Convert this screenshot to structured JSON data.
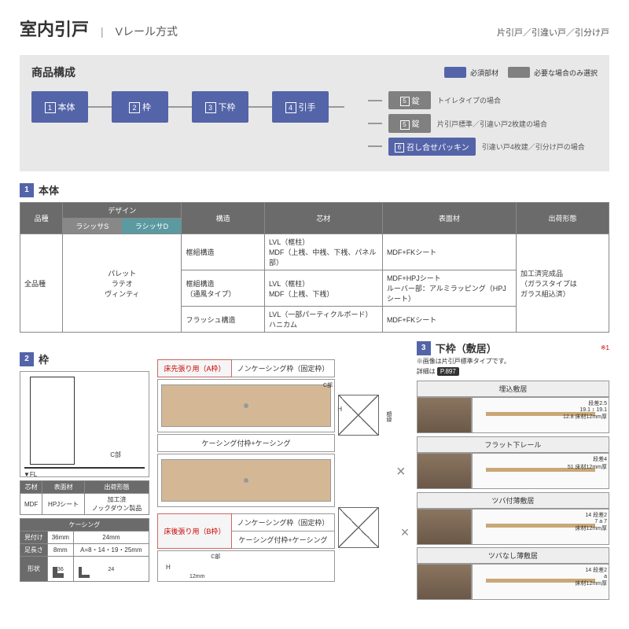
{
  "colors": {
    "primary": "#5464a8",
    "gray": "#808080",
    "darkgray": "#6b6b6b",
    "teal": "#5a9aa0"
  },
  "header": {
    "title": "室内引戸",
    "subtitle": "Vレール方式",
    "right": "片引戸／引違い戸／引分け戸"
  },
  "composition": {
    "title": "商品構成",
    "legend_required": "必須部材",
    "legend_optional": "必要な場合のみ選択",
    "nodes": [
      {
        "num": "1",
        "label": "本体"
      },
      {
        "num": "2",
        "label": "枠"
      },
      {
        "num": "3",
        "label": "下枠"
      },
      {
        "num": "4",
        "label": "引手"
      }
    ],
    "branches": [
      {
        "num": "5",
        "label": "錠",
        "color": "#808080",
        "note": "トイレタイプの場合"
      },
      {
        "num": "5",
        "label": "錠",
        "color": "#808080",
        "note": "片引戸標準／引違い戸2枚建の場合"
      },
      {
        "num": "6",
        "label": "召し合せパッキン",
        "color": "#5464a8",
        "note": "引違い戸4枚建／引分け戸の場合"
      }
    ]
  },
  "section1": {
    "num": "1",
    "title": "本体",
    "headers": {
      "品種": "品種",
      "デザイン": "デザイン",
      "ラシッサS": "ラシッサS",
      "ラシッサD": "ラシッサD",
      "構造": "構造",
      "芯材": "芯材",
      "表面材": "表面材",
      "出荷形態": "出荷形態"
    },
    "body": {
      "品種": "全品種",
      "デザイン": "パレット\nラテオ\nヴィンティ",
      "rows": [
        {
          "構造": "框組構造",
          "芯材": "LVL（框柱）\nMDF（上桟、中桟、下桟、パネル部）",
          "表面材": "MDF+FKシート"
        },
        {
          "構造": "框組構造\n（通風タイプ）",
          "芯材": "LVL（框柱）\nMDF（上桟、下桟）",
          "表面材": "MDF+HPJシート\nルーバー部：アルミラッピング（HPJシート）"
        },
        {
          "構造": "フラッシュ構造",
          "芯材": "LVL（一部パーティクルボード）\nハニカム",
          "表面材": "MDF+FKシート"
        }
      ],
      "出荷形態": "加工済完成品\n（ガラスタイプは\nガラス組込済）"
    }
  },
  "section2": {
    "num": "2",
    "title": "枠",
    "fl": "▼FL",
    "cpart": "C部",
    "t1": {
      "芯材": "芯材",
      "表面材": "表面材",
      "出荷形態": "出荷形態",
      "v芯材": "MDF",
      "v表面材": "HPJシート",
      "v出荷": "加工済\nノックダウン製品"
    },
    "t2": {
      "ケーシング": "ケーシング",
      "見付け": "見付け",
      "足長さ": "足長さ",
      "形状": "形状",
      "v見付け": "36mm",
      "v見付け2": "24mm",
      "v足長さ": "8mm",
      "v足長さ2": "A=8・14・19・25mm",
      "s36": "36",
      "s24": "24"
    },
    "panels": {
      "床先": "床先張り用（A枠）",
      "床後": "床後張り用（B枠）",
      "ノンケーシング": "ノンケーシング枠（固定枠）",
      "ケーシング付": "ケーシング付枠+ケーシング",
      "C部": "C部",
      "H": "H",
      "12mm": "12mm",
      "枠仕込み": "枠仕込み",
      "額縁": "額縁"
    }
  },
  "section3": {
    "num": "3",
    "title": "下枠（敷居）",
    "note1": "※1",
    "note2": "※画像は片引戸標準タイプです。",
    "note3_pre": "詳細は",
    "note3_ref": "P.897",
    "sills": [
      {
        "name": "埋込敷居",
        "dims": "段差2.5\n19.1 ↕ 19.1\n12.8 床材12mm厚"
      },
      {
        "name": "フラット下レール",
        "dims": "段差4\n51 床材12mm厚"
      },
      {
        "name": "ツバ付薄敷居",
        "dims": "14 段差2\n7 a 7\n床材12mm厚"
      },
      {
        "name": "ツバなし薄敷居",
        "dims": "14 段差2\na\n床材12mm厚"
      }
    ]
  }
}
